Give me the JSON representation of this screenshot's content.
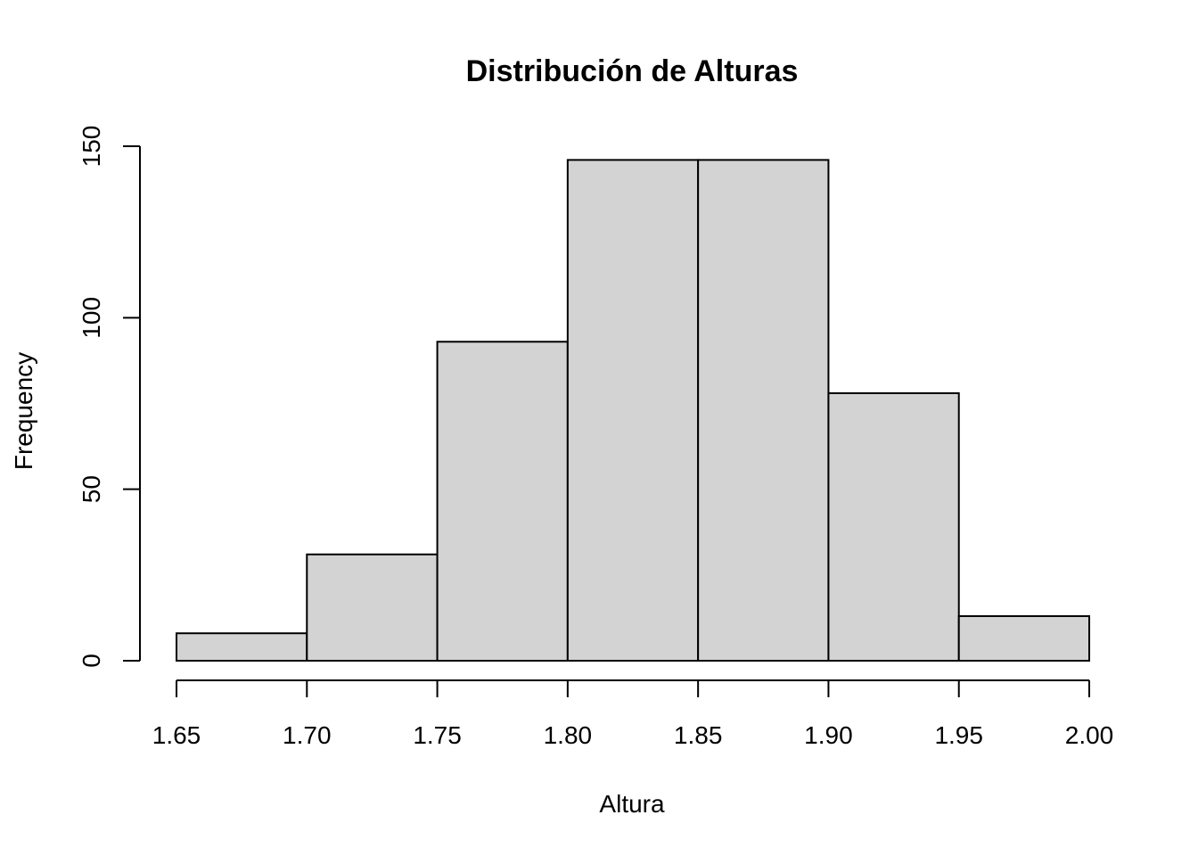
{
  "chart_data": {
    "type": "bar",
    "title": "Distribución de Alturas",
    "xlabel": "Altura",
    "ylabel": "Frequency",
    "bins": [
      {
        "from": 1.65,
        "to": 1.7,
        "count": 8
      },
      {
        "from": 1.7,
        "to": 1.75,
        "count": 31
      },
      {
        "from": 1.75,
        "to": 1.8,
        "count": 93
      },
      {
        "from": 1.8,
        "to": 1.85,
        "count": 146
      },
      {
        "from": 1.85,
        "to": 1.9,
        "count": 146
      },
      {
        "from": 1.9,
        "to": 1.95,
        "count": 78
      },
      {
        "from": 1.95,
        "to": 2.0,
        "count": 13
      }
    ],
    "xlim": [
      1.65,
      2.0
    ],
    "ylim": [
      0,
      150
    ],
    "xticks": [
      "1.65",
      "1.70",
      "1.75",
      "1.80",
      "1.85",
      "1.90",
      "1.95",
      "2.00"
    ],
    "yticks": [
      "0",
      "50",
      "100",
      "150"
    ],
    "grid": false,
    "bar_color": "#d3d3d3",
    "edge_color": "#000000"
  }
}
